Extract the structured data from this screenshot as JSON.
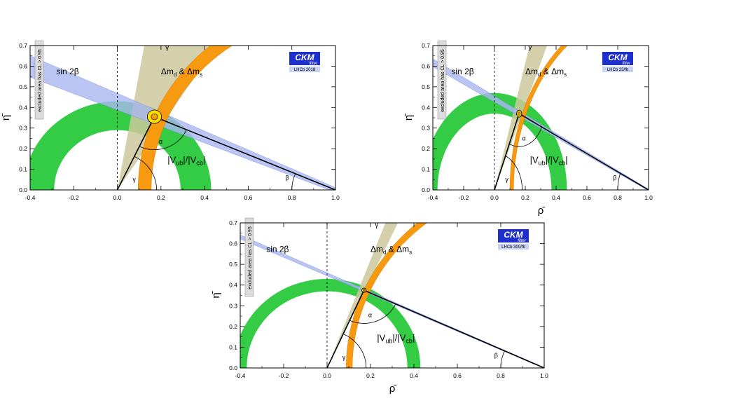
{
  "common": {
    "x_ticks": [
      "-0.4",
      "-0.2",
      "0.0",
      "0.2",
      "0.4",
      "0.6",
      "0.8",
      "1.0"
    ],
    "y_ticks": [
      "0.0",
      "0.1",
      "0.2",
      "0.3",
      "0.4",
      "0.5",
      "0.6",
      "0.7"
    ],
    "colors": {
      "sin2beta": "#aab7f2",
      "gamma": "#cdc89c",
      "dm": "#f79a10",
      "vub": "#33cc44",
      "contour_fill": "#ffe000",
      "logo_blue": "#1d2fcc"
    },
    "logo_title": "CKM",
    "logo_subtitle": "fitter",
    "labels": {
      "sin2beta": "sin 2β",
      "dm_main": "Δm",
      "dm_sub1": "d",
      "dm_and": " & Δm",
      "dm_sub2": "s",
      "vub_open": "|V",
      "vub_sub1": "ub",
      "vub_mid": "|/|V",
      "vub_sub2": "cb",
      "vub_close": "|",
      "alpha": "α",
      "beta": "β",
      "gamma": "γ",
      "excluded": "excluded area has CL > 0.95"
    }
  },
  "chart_data": [
    {
      "type": "area",
      "title": "",
      "xlabel": "",
      "ylabel": "η̄",
      "xlim": [
        -0.4,
        1.0
      ],
      "ylim": [
        0.0,
        0.7
      ],
      "logo_label": "LHCb 2018",
      "apex": [
        0.17,
        0.355
      ],
      "regions": {
        "sin2beta_width": 0.11,
        "vub_radius": [
          0.29,
          0.43
        ],
        "dm_radius": [
          0.845,
          0.905
        ],
        "gamma_phi": [
          57,
          80
        ],
        "contour_r": 0.025
      }
    },
    {
      "type": "area",
      "title": "",
      "xlabel": "ρ̄",
      "ylabel": "η̄",
      "xlim": [
        -0.4,
        1.0
      ],
      "ylim": [
        0.0,
        0.7
      ],
      "logo_label": "LHCb 23/fb",
      "apex": [
        0.16,
        0.37
      ],
      "regions": {
        "sin2beta_width": 0.04,
        "vub_radius": [
          0.37,
          0.47
        ],
        "dm_radius": [
          0.876,
          0.9
        ],
        "gamma_phi": [
          64,
          72
        ],
        "contour_r": 0.013
      }
    },
    {
      "type": "area",
      "title": "",
      "xlabel": "ρ̄",
      "ylabel": "η̄",
      "xlim": [
        -0.4,
        1.0
      ],
      "ylim": [
        0.0,
        0.7
      ],
      "logo_label": "LHCb 300/fb",
      "apex": [
        0.17,
        0.375
      ],
      "regions": {
        "sin2beta_width": 0.02,
        "vub_radius": [
          0.37,
          0.43
        ],
        "dm_radius": [
          0.884,
          0.912
        ],
        "gamma_phi": [
          65,
          69
        ],
        "contour_r": 0.008
      }
    }
  ]
}
